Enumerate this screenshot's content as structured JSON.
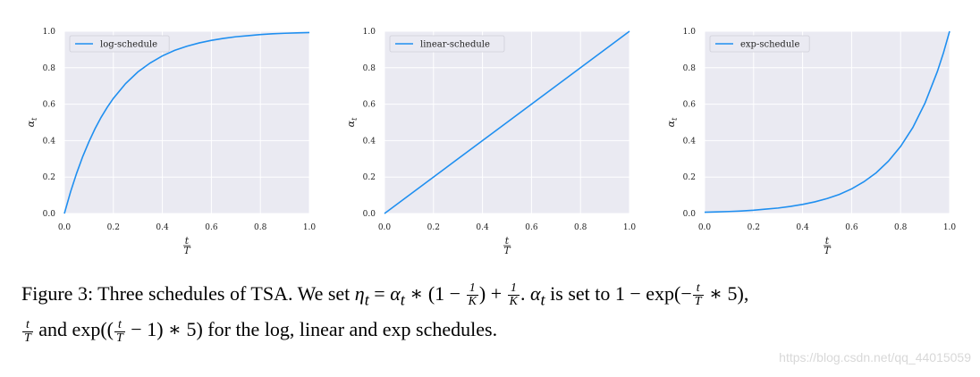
{
  "chart_data": [
    {
      "type": "line",
      "legend": "log-schedule",
      "legend_position": "top-left",
      "ylabel": "α",
      "ylabel_sub": "t",
      "xlabel_num": "t",
      "xlabel_den": "T",
      "xlim": [
        0,
        1
      ],
      "ylim": [
        0,
        1
      ],
      "xticks": [
        "0.0",
        "0.2",
        "0.4",
        "0.6",
        "0.8",
        "1.0"
      ],
      "yticks": [
        "0.0",
        "0.2",
        "0.4",
        "0.6",
        "0.8",
        "1.0"
      ],
      "grid": true,
      "color": "#1f8ff0",
      "series": [
        {
          "x": [
            0,
            0.025,
            0.05,
            0.075,
            0.1,
            0.125,
            0.15,
            0.175,
            0.2,
            0.25,
            0.3,
            0.35,
            0.4,
            0.45,
            0.5,
            0.55,
            0.6,
            0.65,
            0.7,
            0.75,
            0.8,
            0.85,
            0.9,
            0.95,
            1.0
          ],
          "y": [
            0,
            0.118,
            0.221,
            0.313,
            0.393,
            0.465,
            0.528,
            0.583,
            0.632,
            0.713,
            0.777,
            0.826,
            0.865,
            0.895,
            0.918,
            0.936,
            0.95,
            0.961,
            0.97,
            0.976,
            0.982,
            0.986,
            0.989,
            0.991,
            0.993
          ]
        }
      ]
    },
    {
      "type": "line",
      "legend": "linear-schedule",
      "legend_position": "top-left",
      "ylabel": "α",
      "ylabel_sub": "t",
      "xlabel_num": "t",
      "xlabel_den": "T",
      "xlim": [
        0,
        1
      ],
      "ylim": [
        0,
        1
      ],
      "xticks": [
        "0.0",
        "0.2",
        "0.4",
        "0.6",
        "0.8",
        "1.0"
      ],
      "yticks": [
        "0.0",
        "0.2",
        "0.4",
        "0.6",
        "0.8",
        "1.0"
      ],
      "grid": true,
      "color": "#1f8ff0",
      "series": [
        {
          "x": [
            0,
            0.25,
            0.5,
            0.75,
            1.0
          ],
          "y": [
            0,
            0.25,
            0.5,
            0.75,
            1.0
          ]
        }
      ]
    },
    {
      "type": "line",
      "legend": "exp-schedule",
      "legend_position": "top-left",
      "ylabel": "α",
      "ylabel_sub": "t",
      "xlabel_num": "t",
      "xlabel_den": "T",
      "xlim": [
        0,
        1
      ],
      "ylim": [
        0,
        1
      ],
      "xticks": [
        "0.0",
        "0.2",
        "0.4",
        "0.6",
        "0.8",
        "1.0"
      ],
      "yticks": [
        "0.0",
        "0.2",
        "0.4",
        "0.6",
        "0.8",
        "1.0"
      ],
      "grid": true,
      "color": "#1f8ff0",
      "series": [
        {
          "x": [
            0,
            0.05,
            0.1,
            0.15,
            0.2,
            0.25,
            0.3,
            0.35,
            0.4,
            0.45,
            0.5,
            0.55,
            0.6,
            0.65,
            0.7,
            0.75,
            0.8,
            0.85,
            0.9,
            0.95,
            0.975,
            1.0
          ],
          "y": [
            0.007,
            0.009,
            0.011,
            0.014,
            0.018,
            0.024,
            0.03,
            0.039,
            0.05,
            0.064,
            0.082,
            0.105,
            0.135,
            0.174,
            0.223,
            0.287,
            0.368,
            0.472,
            0.607,
            0.779,
            0.882,
            1.0
          ]
        }
      ]
    }
  ],
  "caption": {
    "p1": "Figure 3: Three schedules of TSA. We set ",
    "eta": "η",
    "eta_sub": "t",
    "p2": " = ",
    "alpha": "α",
    "alpha_sub": "t",
    "p3": " ∗ (1 − ",
    "f1_num": "1",
    "f1_den": "K",
    "p4": ") + ",
    "f2_num": "1",
    "f2_den": "K",
    "p5": ". ",
    "alpha2": "α",
    "alpha2_sub": "t",
    "p6": " is set to 1 − exp(−",
    "f3_num": "t",
    "f3_den": "T",
    "p7": " ∗ 5),",
    "f4_num": "t",
    "f4_den": "T",
    "p8": " and exp((",
    "f5_num": "t",
    "f5_den": "T",
    "p9": " − 1) ∗ 5) for the log, linear and exp schedules."
  },
  "watermark": "https://blog.csdn.net/qq_44015059"
}
